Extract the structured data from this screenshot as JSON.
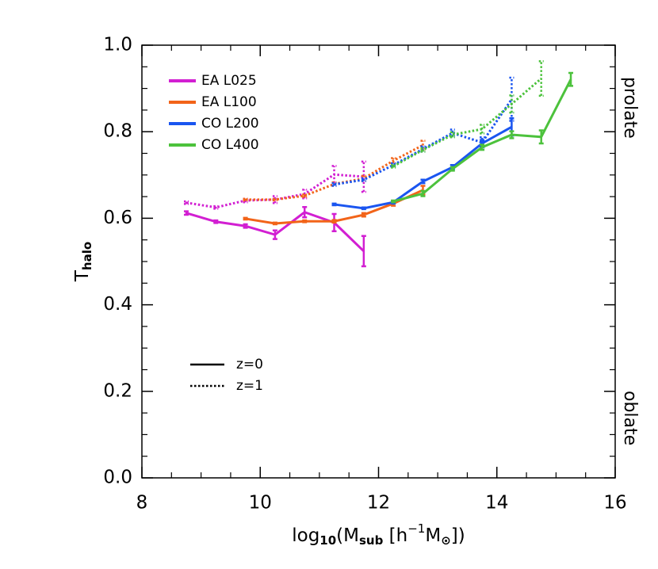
{
  "chart_data": {
    "type": "line",
    "xlabel": [
      {
        "t": "log"
      },
      {
        "t": "10",
        "shift": "sub"
      },
      {
        "t": "(M"
      },
      {
        "t": "sub",
        "shift": "sub"
      },
      {
        "t": " [h"
      },
      {
        "t": "−1",
        "shift": "sup"
      },
      {
        "t": "M"
      },
      {
        "t": "⊙",
        "shift": "sub"
      },
      {
        "t": "])"
      }
    ],
    "ylabel": [
      {
        "t": "T"
      },
      {
        "t": "halo",
        "shift": "sub"
      }
    ],
    "right_labels": {
      "top": "prolate",
      "bottom": "oblate"
    },
    "xlim": [
      8,
      16
    ],
    "ylim": [
      0,
      1
    ],
    "xticks": [
      8,
      10,
      12,
      14,
      16
    ],
    "yticks": [
      {
        "value": 0,
        "label": "0.0"
      },
      0.2,
      0.4,
      0.6,
      0.8,
      {
        "value": 1,
        "label": "1.0"
      }
    ],
    "xminorticks": [
      8.5,
      9,
      9.5,
      10.5,
      11,
      11.5,
      12.5,
      13,
      13.5,
      14.5,
      15,
      15.5
    ],
    "yminorticks": [
      0.05,
      0.1,
      0.15,
      0.25,
      0.3,
      0.35,
      0.45,
      0.5,
      0.55,
      0.65,
      0.7,
      0.75,
      0.85,
      0.9,
      0.95
    ],
    "x": [
      8.75,
      9.25,
      9.75,
      10.25,
      10.75,
      11.25,
      11.75,
      12.25,
      12.75,
      13.25,
      13.75,
      14.25,
      14.75,
      15.25
    ],
    "linestyles": [
      {
        "label": "z=0",
        "dash": "solid"
      },
      {
        "label": "z=1",
        "dash": "dotted"
      }
    ],
    "series": [
      {
        "name": "EA L025",
        "color": "#d21fd2",
        "z0": [
          0.612,
          0.592,
          0.582,
          0.562,
          0.614,
          0.59,
          0.524,
          null,
          null,
          null,
          null,
          null,
          null,
          null
        ],
        "z0_err": [
          0.004,
          0.003,
          0.004,
          0.01,
          0.012,
          0.02,
          0.035,
          null,
          null,
          null,
          null,
          null,
          null,
          null
        ],
        "z1": [
          0.636,
          0.625,
          0.641,
          0.643,
          0.656,
          0.701,
          0.696,
          null,
          null,
          null,
          null,
          null,
          null,
          null
        ],
        "z1_err": [
          0.003,
          0.003,
          0.004,
          0.008,
          0.01,
          0.02,
          0.035,
          null,
          null,
          null,
          null,
          null,
          null,
          null
        ]
      },
      {
        "name": "EA L100",
        "color": "#f26419",
        "z0": [
          null,
          null,
          0.599,
          0.588,
          0.593,
          0.593,
          0.608,
          0.634,
          0.665,
          null,
          null,
          null,
          null,
          null
        ],
        "z0_err": [
          null,
          null,
          0.002,
          0.002,
          0.002,
          0.003,
          0.004,
          0.005,
          0.01,
          null,
          null,
          null,
          null,
          null
        ],
        "z1": [
          null,
          null,
          0.643,
          0.643,
          0.652,
          0.679,
          0.692,
          0.733,
          0.769,
          null,
          null,
          null,
          null,
          null
        ],
        "z1_err": [
          null,
          null,
          0.002,
          0.002,
          0.003,
          0.004,
          0.006,
          0.006,
          0.01,
          null,
          null,
          null,
          null,
          null
        ]
      },
      {
        "name": "CO L200",
        "color": "#1a55f0",
        "z0": [
          null,
          null,
          null,
          null,
          null,
          0.632,
          0.623,
          0.637,
          0.685,
          0.718,
          0.773,
          0.811,
          null,
          null
        ],
        "z0_err": [
          null,
          null,
          null,
          null,
          null,
          0.002,
          0.002,
          0.003,
          0.004,
          0.005,
          0.008,
          0.02,
          null,
          null
        ],
        "z1": [
          null,
          null,
          null,
          null,
          null,
          0.678,
          0.689,
          0.723,
          0.76,
          0.797,
          0.775,
          0.875,
          null,
          null
        ],
        "z1_err": [
          null,
          null,
          null,
          null,
          null,
          0.003,
          0.003,
          0.004,
          0.006,
          0.008,
          0.012,
          0.05,
          null,
          null
        ]
      },
      {
        "name": "CO L400",
        "color": "#4cc23c",
        "z0": [
          null,
          null,
          null,
          null,
          null,
          null,
          null,
          0.639,
          0.657,
          0.714,
          0.764,
          0.793,
          0.788,
          0.921
        ],
        "z0_err": [
          null,
          null,
          null,
          null,
          null,
          null,
          null,
          0.002,
          0.006,
          0.004,
          0.006,
          0.008,
          0.015,
          0.015
        ],
        "z1": [
          null,
          null,
          null,
          null,
          null,
          null,
          null,
          0.72,
          0.758,
          0.793,
          0.806,
          0.864,
          0.923,
          null
        ],
        "z1_err": [
          null,
          null,
          null,
          null,
          null,
          null,
          null,
          0.003,
          0.004,
          0.006,
          0.01,
          0.02,
          0.04,
          null
        ]
      }
    ]
  }
}
